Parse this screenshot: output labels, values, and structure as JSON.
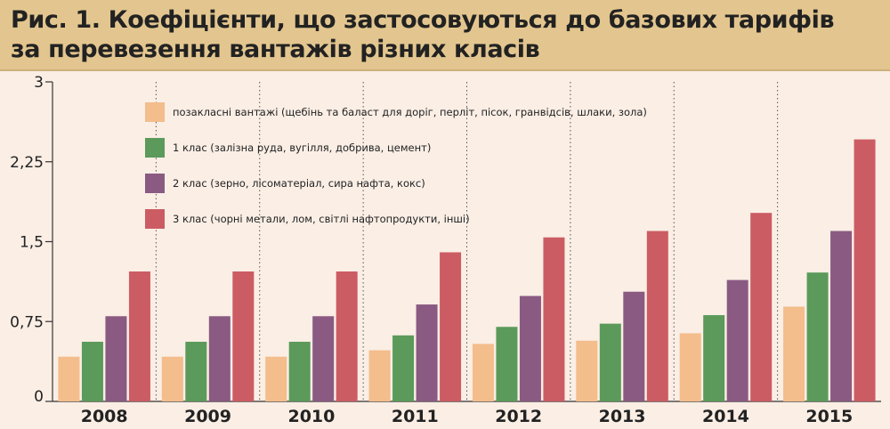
{
  "title": {
    "line1": "Рис. 1. Коефіцієнти, що застосовуються до базових тарифів",
    "line2": "за перевезення вантажів різних класів"
  },
  "colors": {
    "background": "#faeee5",
    "title_band": "#e3c68f",
    "series": [
      "#f3bd8c",
      "#5b9a5a",
      "#8a5a82",
      "#cc5c63"
    ]
  },
  "chart_data": {
    "type": "bar",
    "title": "Рис. 1. Коефіцієнти, що застосовуються до базових тарифів за перевезення вантажів різних класів",
    "categories": [
      "2008",
      "2009",
      "2010",
      "2011",
      "2012",
      "2013",
      "2014",
      "2015"
    ],
    "ylim": [
      0,
      3
    ],
    "yticks": [
      0,
      0.75,
      1.5,
      2.25,
      3
    ],
    "ytick_labels": [
      "0",
      "0,75",
      "1,5",
      "2,25",
      "3"
    ],
    "grid": "dotted vertical",
    "legend_placement": "top-left",
    "series": [
      {
        "name": "позакласні вантажі (щебінь та баласт для доріг, перліт, пісок, гранвідсів, шлаки, зола)",
        "values": [
          0.42,
          0.42,
          0.42,
          0.48,
          0.54,
          0.57,
          0.64,
          0.89
        ]
      },
      {
        "name": "1 клас (залізна руда, вугілля, добрива, цемент)",
        "values": [
          0.56,
          0.56,
          0.56,
          0.62,
          0.7,
          0.73,
          0.81,
          1.21
        ]
      },
      {
        "name": "2 клас (зерно, лісоматеріал, сира нафта, кокс)",
        "values": [
          0.8,
          0.8,
          0.8,
          0.91,
          0.99,
          1.03,
          1.14,
          1.6
        ]
      },
      {
        "name": "3 клас (чорні метали, лом, світлі нафтопродукти, інші)",
        "values": [
          1.22,
          1.22,
          1.22,
          1.4,
          1.54,
          1.6,
          1.77,
          2.46
        ]
      }
    ]
  }
}
